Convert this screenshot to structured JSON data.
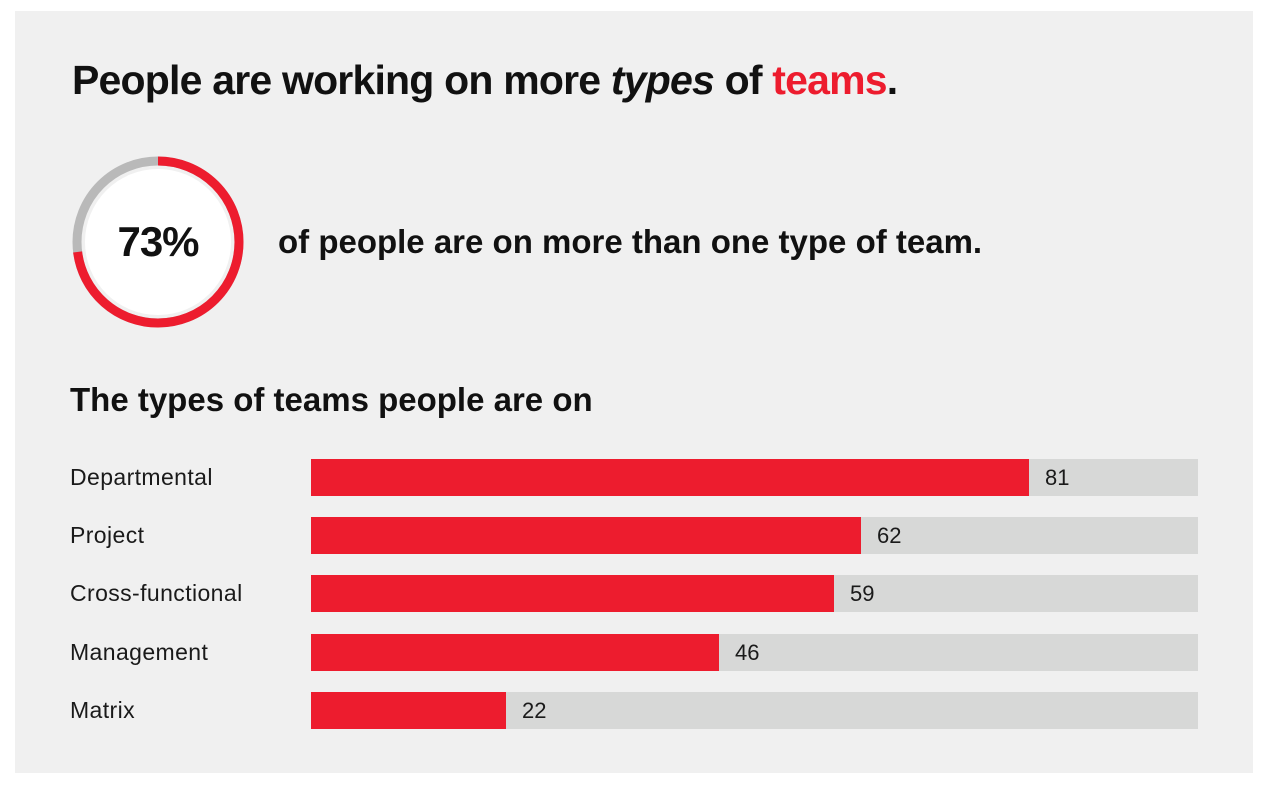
{
  "colors": {
    "accent": "#ed1c2e",
    "track": "#d7d8d7",
    "ring_rest": "#b9b9b9",
    "background": "#f0f0f0"
  },
  "headline": {
    "part1": "People are working on more ",
    "part2_italic": "types",
    "part3": " of ",
    "part4_accent": "teams",
    "part5": "."
  },
  "stat": {
    "value": 73,
    "label": "73%",
    "text": "of people are on more than one type of team."
  },
  "chart_data": {
    "type": "bar",
    "orientation": "horizontal",
    "title": "The types of teams people are on",
    "categories": [
      "Departmental",
      "Project",
      "Cross-functional",
      "Management",
      "Matrix"
    ],
    "values": [
      81,
      62,
      59,
      46,
      22
    ],
    "value_labels": [
      "81",
      "62",
      "59",
      "46",
      "22"
    ],
    "xlim": [
      0,
      100
    ],
    "grid": false
  }
}
